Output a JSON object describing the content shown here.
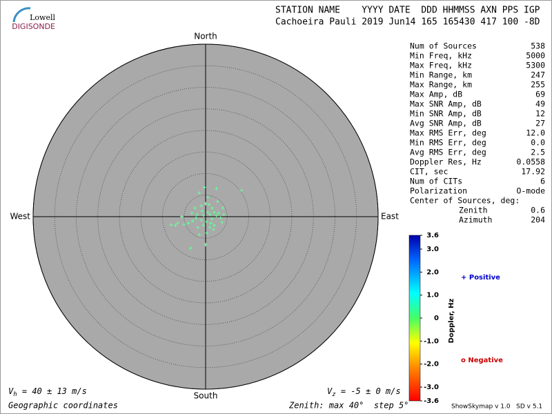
{
  "logo": {
    "top": "Lowell",
    "bottom": "DIGISONDE"
  },
  "header": {
    "line1": "STATION NAME    YYYY DATE  DDD HHMMSS AXN PPS IGP",
    "line2": "Cachoeira Pauli 2019 Jun14 165 165430 417 100 -8D"
  },
  "stats": {
    "rows": [
      [
        "Num of Sources",
        "538"
      ],
      [
        "Min Freq, kHz",
        "5000"
      ],
      [
        "Max Freq, kHz",
        "5300"
      ],
      [
        "Min Range, km",
        "247"
      ],
      [
        "Max Range, km",
        "255"
      ],
      [
        "Max Amp, dB",
        "69"
      ],
      [
        "Max SNR Amp, dB",
        "49"
      ],
      [
        "Min SNR Amp, dB",
        "12"
      ],
      [
        "Avg SNR Amp, dB",
        "27"
      ],
      [
        "Max RMS Err, deg",
        "12.0"
      ],
      [
        "Min RMS Err, deg",
        "0.0"
      ],
      [
        "Avg RMS Err, deg",
        "2.5"
      ],
      [
        "Doppler Res, Hz",
        "0.0558"
      ],
      [
        "CIT, sec",
        "17.92"
      ],
      [
        "Num of CITs",
        "6"
      ],
      [
        "Polarization",
        "O-mode"
      ]
    ],
    "center_title": "Center of Sources, deg:",
    "center_rows": [
      [
        "Zenith",
        "0.6"
      ],
      [
        "Azimuth",
        "204"
      ]
    ]
  },
  "legend": {
    "positive": "+ Positive",
    "negative": "o Negative"
  },
  "footer": {
    "vh_sym": "V",
    "vh_sub": "h",
    "vh_text": " = 40 ± 13 m/s",
    "vz_sym": "V",
    "vz_sub": "z",
    "vz_text": " = -5 ± 0 m/s",
    "coords": "Geographic coordinates",
    "zenith": "Zenith: max 40°  step 5°",
    "version": "ShowSkymap v 1.0   SD v 5.1"
  },
  "chart_data": {
    "type": "skymap",
    "directions": {
      "north": "North",
      "south": "South",
      "east": "East",
      "west": "West"
    },
    "rlim": [
      0,
      40
    ],
    "rticks": [
      5,
      10,
      15,
      20,
      25,
      30,
      35,
      40
    ],
    "color": "#66ff99",
    "x": [
      0.5,
      1,
      -0.5,
      1.5,
      2,
      2.5,
      -1,
      0.2,
      3,
      3.5,
      -2,
      -3,
      -4,
      -5,
      -6.5,
      -7,
      -8,
      -2.5,
      -1,
      0,
      0.5,
      -1.5,
      2.5,
      -0.3,
      8.3,
      1,
      0.3,
      0,
      -3.5,
      -1.5,
      2,
      3.8,
      4.2,
      4,
      1.5,
      -0.8,
      1.2,
      -1.8,
      -3.2,
      -5.5,
      2.8,
      1.8,
      -0.5,
      0.8,
      -2.2
    ],
    "y": [
      1,
      0.5,
      0.3,
      -0.5,
      1,
      0.2,
      -0.8,
      -1.2,
      0.8,
      -0.3,
      0.5,
      -1,
      -1.5,
      -1.8,
      -1.5,
      -2,
      -1.9,
      2,
      2.5,
      3,
      4.5,
      5.5,
      6.5,
      6.8,
      6.1,
      -2.5,
      -3.8,
      -6.5,
      -7.3,
      -4.2,
      -2,
      -1.3,
      0.5,
      2,
      2,
      1.3,
      -1.5,
      -2.5,
      0.8,
      0,
      3.5,
      -3,
      -2,
      2.8,
      -0.3
    ],
    "colorbar": {
      "label": "Doppler, Hz",
      "lim": [
        -3.6,
        3.6
      ],
      "ticks": [
        3.6,
        {
          "value": 3,
          "label": "3.0"
        },
        {
          "value": 2,
          "label": "2.0"
        },
        {
          "value": 1,
          "label": "1.0"
        },
        0,
        {
          "value": -1,
          "label": "-1.0"
        },
        {
          "value": -2,
          "label": "-2.0"
        },
        {
          "value": -3,
          "label": "-3.0"
        },
        -3.6
      ]
    }
  }
}
